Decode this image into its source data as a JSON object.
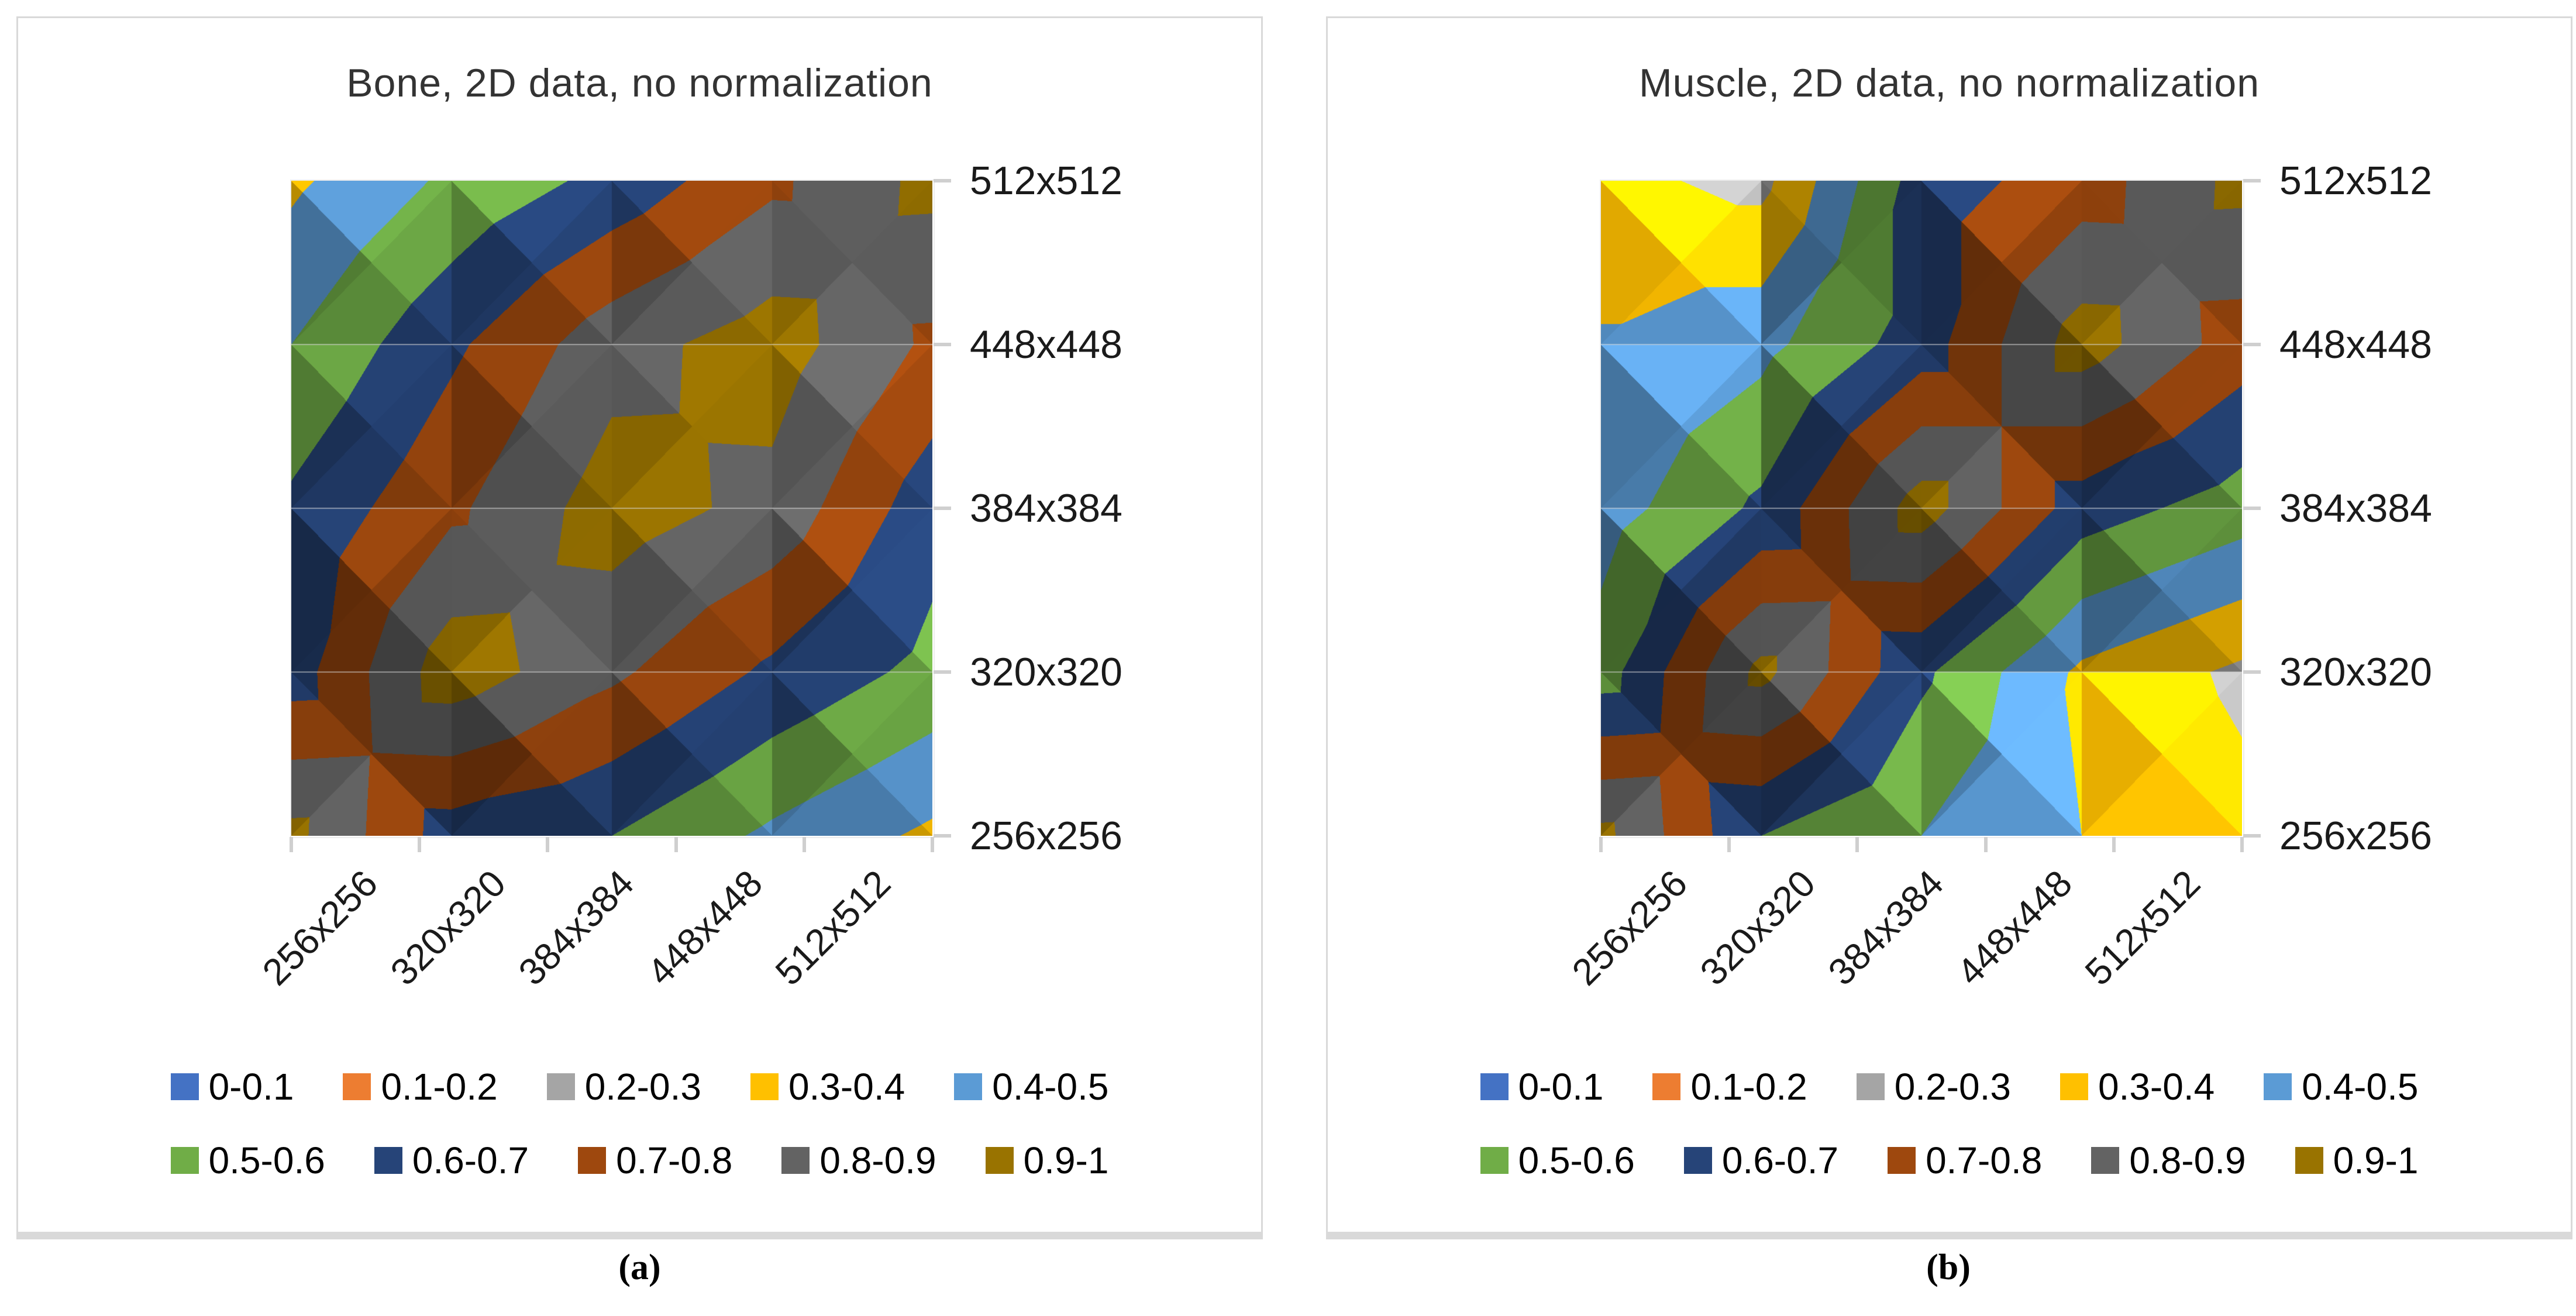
{
  "figure": {
    "panels": [
      {
        "caption": "(a)",
        "title": "Bone, 2D data, no normalization",
        "chart_data": {
          "type": "heatmap",
          "subtype": "excel-surface-contour-top-view",
          "title": "Bone, 2D data, no normalization",
          "x_categories": [
            "256x256",
            "320x320",
            "384x384",
            "448x448",
            "512x512"
          ],
          "y_categories": [
            "256x256",
            "320x320",
            "384x384",
            "448x448",
            "512x512"
          ],
          "zlim": [
            0,
            1
          ],
          "grid": "horizontal-major",
          "legend_position": "bottom",
          "matrix_rows_bottom_to_top": [
            [
              0.93,
              0.65,
              0.6,
              0.48,
              0.38
            ],
            [
              0.65,
              0.96,
              0.82,
              0.68,
              0.57
            ],
            [
              0.62,
              0.78,
              0.95,
              0.87,
              0.64
            ],
            [
              0.5,
              0.68,
              0.86,
              0.95,
              0.78
            ],
            [
              0.38,
              0.52,
              0.63,
              0.78,
              0.93
            ]
          ],
          "bands": [
            {
              "label": "0-0.1",
              "color": "#4472C4"
            },
            {
              "label": "0.1-0.2",
              "color": "#ED7D31"
            },
            {
              "label": "0.2-0.3",
              "color": "#A5A5A5"
            },
            {
              "label": "0.3-0.4",
              "color": "#FFC000"
            },
            {
              "label": "0.4-0.5",
              "color": "#5B9BD5"
            },
            {
              "label": "0.5-0.6",
              "color": "#70AD47"
            },
            {
              "label": "0.6-0.7",
              "color": "#264478"
            },
            {
              "label": "0.7-0.8",
              "color": "#9E480E"
            },
            {
              "label": "0.8-0.9",
              "color": "#636363"
            },
            {
              "label": "0.9-1",
              "color": "#997300"
            }
          ]
        }
      },
      {
        "caption": "(b)",
        "title": "Muscle, 2D data, no normalization",
        "chart_data": {
          "type": "heatmap",
          "subtype": "excel-surface-contour-top-view",
          "title": "Muscle, 2D data, no normalization",
          "x_categories": [
            "256x256",
            "320x320",
            "384x384",
            "448x448",
            "512x512"
          ],
          "y_categories": [
            "256x256",
            "320x320",
            "384x384",
            "448x448",
            "512x512"
          ],
          "zlim": [
            0,
            1
          ],
          "grid": "horizontal-major",
          "legend_position": "bottom",
          "matrix_rows_bottom_to_top": [
            [
              0.93,
              0.6,
              0.5,
              0.4,
              0.33
            ],
            [
              0.55,
              0.93,
              0.62,
              0.38,
              0.28
            ],
            [
              0.45,
              0.62,
              0.95,
              0.65,
              0.55
            ],
            [
              0.41,
              0.47,
              0.65,
              0.95,
              0.75
            ],
            [
              0.33,
              0.27,
              0.65,
              0.75,
              0.93
            ]
          ],
          "bands": [
            {
              "label": "0-0.1",
              "color": "#4472C4"
            },
            {
              "label": "0.1-0.2",
              "color": "#ED7D31"
            },
            {
              "label": "0.2-0.3",
              "color": "#A5A5A5"
            },
            {
              "label": "0.3-0.4",
              "color": "#FFC000"
            },
            {
              "label": "0.4-0.5",
              "color": "#5B9BD5"
            },
            {
              "label": "0.5-0.6",
              "color": "#70AD47"
            },
            {
              "label": "0.6-0.7",
              "color": "#264478"
            },
            {
              "label": "0.7-0.8",
              "color": "#9E480E"
            },
            {
              "label": "0.8-0.9",
              "color": "#636363"
            },
            {
              "label": "0.9-1",
              "color": "#997300"
            }
          ]
        }
      }
    ]
  }
}
